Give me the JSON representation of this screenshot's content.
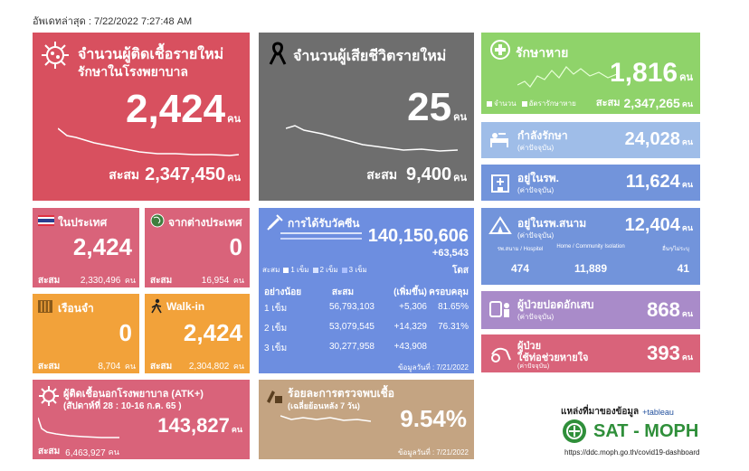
{
  "updated": "อัพเดทล่าสุด : 7/22/2022 7:27:48 AM",
  "new_cases": {
    "title1": "จำนวนผู้ติดเชื้อรายใหม่",
    "title2": "รักษาในโรงพยาบาล",
    "value": "2,424",
    "unit": "คน",
    "total_label": "สะสม",
    "total": "2,347,450",
    "total_unit": "คน",
    "color": "#d8505f"
  },
  "deaths": {
    "title": "จำนวนผู้เสียชีวิตรายใหม่",
    "value": "25",
    "unit": "คน",
    "total_label": "สะสม",
    "total": "9,400",
    "total_unit": "คน",
    "color": "#6e6e6e"
  },
  "recovered": {
    "title": "รักษาหาย",
    "value": "1,816",
    "unit": "คน",
    "legend1": "จำนวน",
    "legend2": "อัตรารักษาหาย",
    "total_label": "สะสม",
    "total": "2,347,265",
    "total_unit": "คน",
    "color": "#8fd36a"
  },
  "treating": {
    "title": "กำลังรักษา",
    "sub": "(ค่าปัจจุบัน)",
    "value": "24,028",
    "unit": "คน"
  },
  "hospital": {
    "title": "อยู่ในรพ.",
    "sub": "(ค่าปัจจุบัน)",
    "value": "11,624",
    "unit": "คน"
  },
  "field_hospital": {
    "title": "อยู่ในรพ.สนาม",
    "sub": "(ค่าปัจจุบัน)",
    "value": "12,404",
    "unit": "คน",
    "cols": [
      {
        "label": "รพ.สนาม / Hospitel",
        "value": "474"
      },
      {
        "label": "Home / Community Isolation",
        "value": "11,889"
      },
      {
        "label": "อื่นๆ/ไม่ระบุ",
        "value": "41"
      }
    ]
  },
  "pneumonia": {
    "title": "ผู้ป่วยปอดอักเสบ",
    "sub": "(ค่าปัจจุบัน)",
    "value": "868",
    "unit": "คน"
  },
  "ventilator": {
    "title1": "ผู้ป่วย",
    "title2": "ใช้ท่อช่วยหายใจ",
    "sub": "(ค่าปัจจุบัน)",
    "value": "393",
    "unit": "คน"
  },
  "domestic": {
    "title": "ในประเทศ",
    "value": "2,424",
    "total_label": "สะสม",
    "total": "2,330,496",
    "total_unit": "คน"
  },
  "imported": {
    "title": "จากต่างประเทศ",
    "value": "0",
    "total_label": "สะสม",
    "total": "16,954",
    "total_unit": "คน"
  },
  "prison": {
    "title": "เรือนจำ",
    "value": "0",
    "total_label": "สะสม",
    "total": "8,704",
    "total_unit": "คน"
  },
  "walkin": {
    "title": "Walk-in",
    "value": "2,424",
    "total_label": "สะสม",
    "total": "2,304,802",
    "total_unit": "คน"
  },
  "vaccine": {
    "title": "การได้รับวัคซีน",
    "total": "140,150,606",
    "delta": "+63,543",
    "dose_unit": "โดส",
    "legend_label": "สะสม",
    "legend": [
      "1 เข็ม",
      "2 เข็ม",
      "3 เข็ม"
    ],
    "headers": [
      "อย่างน้อย",
      "สะสม",
      "(เพิ่มขึ้น)",
      "ครอบคลุม"
    ],
    "rows": [
      {
        "dose": "1 เข็ม",
        "total": "56,793,103",
        "inc": "+5,306",
        "cov": "81.65%"
      },
      {
        "dose": "2 เข็ม",
        "total": "53,079,545",
        "inc": "+14,329",
        "cov": "76.31%"
      },
      {
        "dose": "3 เข็ม",
        "total": "30,277,958",
        "inc": "+43,908",
        "cov": ""
      }
    ],
    "date": "ข้อมูลวันที่ : 7/21/2022"
  },
  "atk": {
    "title": "ผู้ติดเชื้อนอกโรงพยาบาล (ATK+)",
    "sub": "(สัปดาห์ที่ 28  :  10-16 ก.ค. 65 )",
    "value": "143,827",
    "unit": "คน",
    "total_label": "สะสม",
    "total": "6,463,927",
    "total_unit": "คน"
  },
  "positivity": {
    "title": "ร้อยละการตรวจพบเชื้อ",
    "sub": "(เฉลี่ยย้อนหลัง 7 วัน)",
    "value": "9.54%",
    "date": "ข้อมูลวันที่ : 7/21/2022"
  },
  "source": {
    "label": "แหล่งที่มาของข้อมูล",
    "tableau": "+tableau",
    "brand": "SAT - MOPH",
    "url": "https://ddc.moph.go.th/covid19-dashboard"
  },
  "colors": {
    "red": "#d8505f",
    "gray": "#6e6e6e",
    "green": "#8fd36a",
    "light_blue": "#9fbde8",
    "blue": "#7294db",
    "pink": "#d9637a",
    "orange": "#f2a23a",
    "vaccine_blue": "#6d8ee0",
    "purple": "#a98bc9",
    "tan": "#c4a482",
    "brand_green": "#2f8f3a"
  }
}
